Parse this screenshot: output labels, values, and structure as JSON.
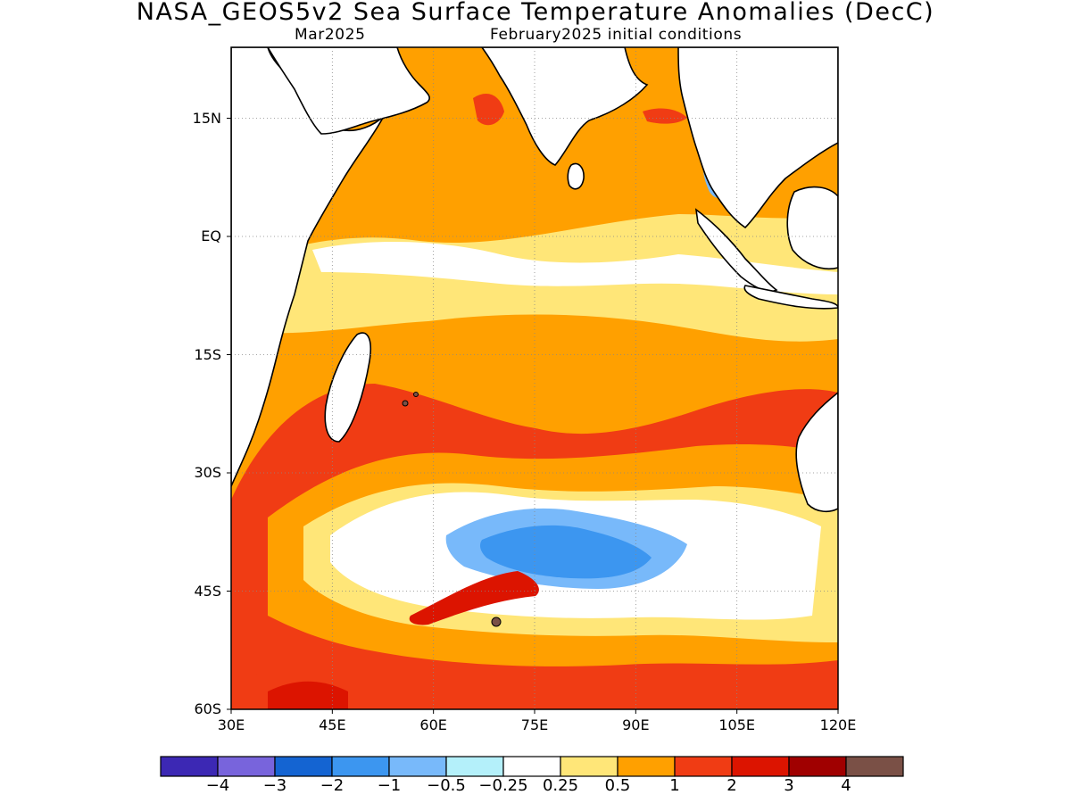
{
  "title": "NASA_GEOS5v2 Sea Surface Temperature Anomalies (DecC)",
  "subtitle_left": "Mar2025",
  "subtitle_right": "February2025 initial conditions",
  "map": {
    "lon_range": [
      30,
      120
    ],
    "lat_range": [
      -60,
      24
    ],
    "grid": true,
    "lat_ticks": [
      {
        "value": 15,
        "label": "15N"
      },
      {
        "value": 0,
        "label": "EQ"
      },
      {
        "value": -15,
        "label": "15S"
      },
      {
        "value": -30,
        "label": "30S"
      },
      {
        "value": -45,
        "label": "45S"
      },
      {
        "value": -60,
        "label": "60S"
      }
    ],
    "lon_ticks": [
      {
        "value": 30,
        "label": "30E"
      },
      {
        "value": 45,
        "label": "45E"
      },
      {
        "value": 60,
        "label": "60E"
      },
      {
        "value": 75,
        "label": "75E"
      },
      {
        "value": 90,
        "label": "90E"
      },
      {
        "value": 105,
        "label": "105E"
      },
      {
        "value": 120,
        "label": "120E"
      }
    ],
    "land_color": "#ffffff",
    "coast_color": "#000000"
  },
  "colorbar": {
    "colors": [
      "#3c28b4",
      "#7864dc",
      "#1464d2",
      "#3c96f0",
      "#78b9fa",
      "#b4f0fa",
      "#ffffff",
      "#ffe678",
      "#ffa000",
      "#f03c14",
      "#dc1400",
      "#a00000",
      "#7a5046"
    ],
    "labels": [
      "−4",
      "−3",
      "−2",
      "−1",
      "−0.5",
      "−0.25",
      "0.25",
      "0.5",
      "1",
      "2",
      "3",
      "4"
    ]
  }
}
